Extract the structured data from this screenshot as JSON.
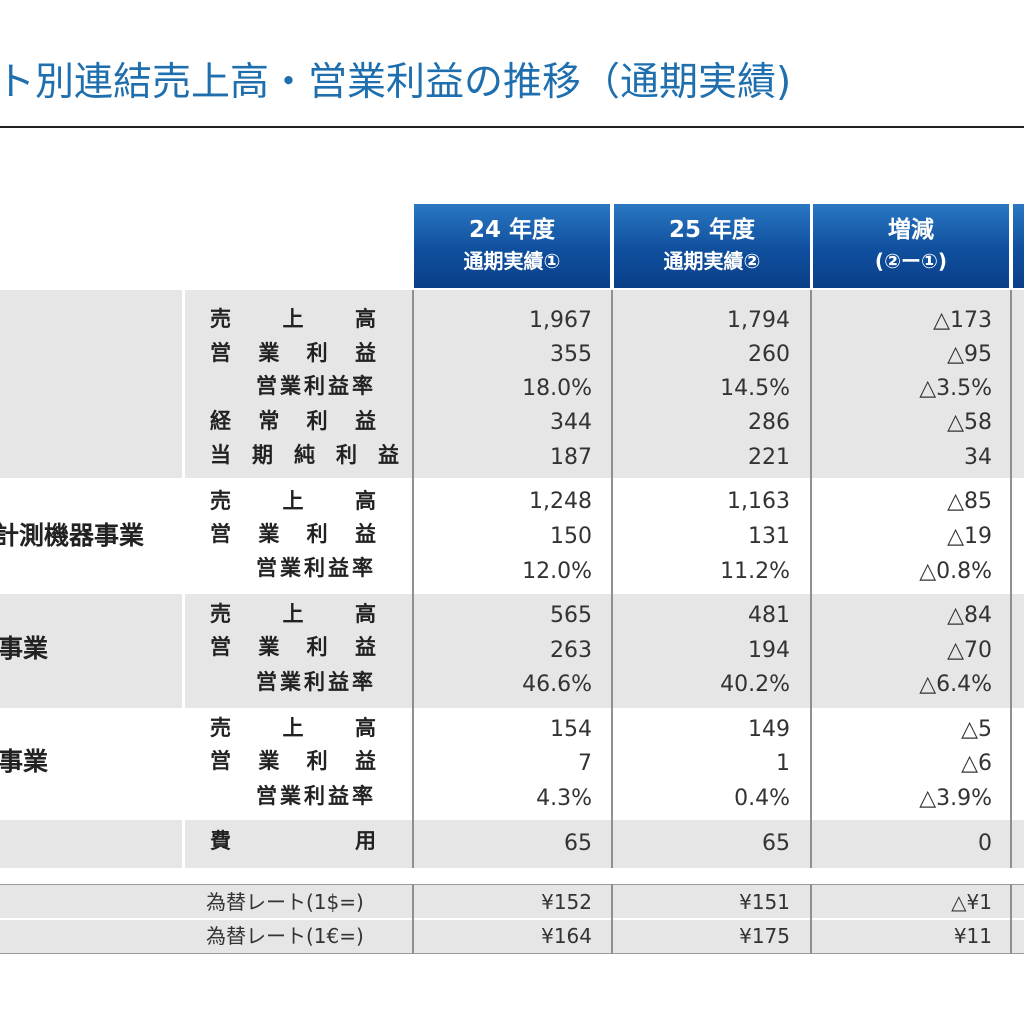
{
  "title": "ト別連結売上高・営業利益の推移（通期実績)",
  "columns": [
    {
      "line1": "24 年度",
      "line2": "通期実績①"
    },
    {
      "line1": "25 年度",
      "line2": "通期実績②"
    },
    {
      "line1": "増減",
      "line2": "(②ー①)"
    }
  ],
  "sections": [
    {
      "segment": "",
      "rows": [
        {
          "label": "売　　上　　高",
          "v": [
            "1,967",
            "1,794",
            "△173"
          ]
        },
        {
          "label": "営　業　利　益",
          "v": [
            "355",
            "260",
            "△95"
          ]
        },
        {
          "label": "営業利益率",
          "v": [
            "18.0%",
            "14.5%",
            "△3.5%"
          ]
        },
        {
          "label": "経　常　利　益",
          "v": [
            "344",
            "286",
            "△58"
          ]
        },
        {
          "label": "当　期　純　利　益",
          "v": [
            "187",
            "221",
            "34"
          ]
        }
      ]
    },
    {
      "segment": "計測機器事業",
      "rows": [
        {
          "label": "売　　上　　高",
          "v": [
            "1,248",
            "1,163",
            "△85"
          ]
        },
        {
          "label": "営　業　利　益",
          "v": [
            "150",
            "131",
            "△19"
          ]
        },
        {
          "label": "営業利益率",
          "v": [
            "12.0%",
            "11.2%",
            "△0.8%"
          ]
        }
      ]
    },
    {
      "segment": "事業",
      "rows": [
        {
          "label": "売　　上　　高",
          "v": [
            "565",
            "481",
            "△84"
          ]
        },
        {
          "label": "営　業　利　益",
          "v": [
            "263",
            "194",
            "△70"
          ]
        },
        {
          "label": "営業利益率",
          "v": [
            "46.6%",
            "40.2%",
            "△6.4%"
          ]
        }
      ]
    },
    {
      "segment": "事業",
      "rows": [
        {
          "label": "売　　上　　高",
          "v": [
            "154",
            "149",
            "△5"
          ]
        },
        {
          "label": "営　業　利　益",
          "v": [
            "7",
            "1",
            "△6"
          ]
        },
        {
          "label": "営業利益率",
          "v": [
            "4.3%",
            "0.4%",
            "△3.9%"
          ]
        }
      ]
    },
    {
      "segment": "",
      "rows": [
        {
          "label": "費　　　　　用",
          "v": [
            "65",
            "65",
            "0"
          ]
        }
      ]
    }
  ],
  "fx": [
    {
      "label": "為替レート(1$=)",
      "v": [
        "¥152",
        "¥151",
        "△¥1"
      ]
    },
    {
      "label": "為替レート(1€=)",
      "v": [
        "¥164",
        "¥175",
        "¥11"
      ]
    }
  ],
  "colors": {
    "header_blue": "#0f4f9e",
    "title_blue": "#1f6faf",
    "band_gray": "#e6e6e6"
  }
}
